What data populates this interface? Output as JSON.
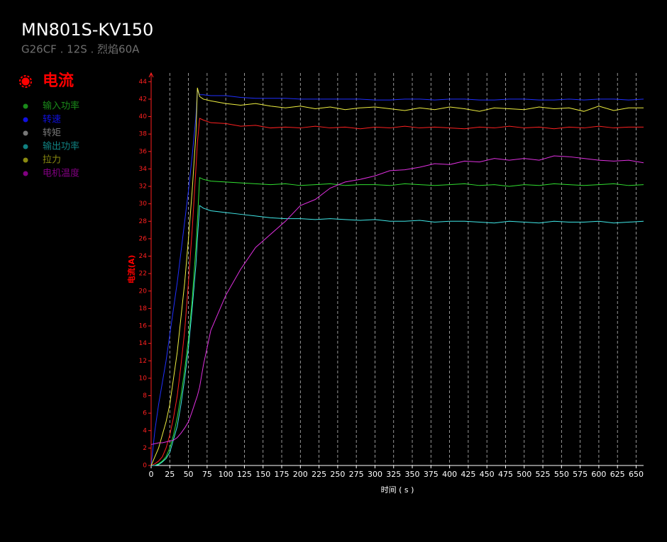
{
  "chart_data": {
    "type": "line",
    "title": "MN801S-KV150",
    "subtitle": "G26CF . 12S . 烈焰60A",
    "x_label": "时间 ( s )",
    "y_label": "电流(A)",
    "xlim": [
      0,
      660
    ],
    "ylim": [
      0,
      45
    ],
    "xticks": [
      0,
      25,
      50,
      75,
      100,
      125,
      150,
      175,
      200,
      225,
      250,
      275,
      300,
      325,
      350,
      375,
      400,
      425,
      450,
      475,
      500,
      525,
      550,
      575,
      600,
      625,
      650
    ],
    "yticks": [
      0,
      2,
      4,
      6,
      8,
      10,
      12,
      14,
      16,
      18,
      20,
      22,
      24,
      26,
      28,
      30,
      32,
      34,
      36,
      38,
      40,
      42,
      44
    ],
    "grid": true,
    "x": [
      0,
      5,
      10,
      15,
      20,
      25,
      30,
      35,
      40,
      45,
      50,
      55,
      60,
      62,
      65,
      70,
      80,
      100,
      120,
      140,
      160,
      180,
      200,
      220,
      240,
      260,
      280,
      300,
      320,
      340,
      360,
      380,
      400,
      420,
      440,
      460,
      480,
      500,
      520,
      540,
      560,
      580,
      600,
      620,
      640,
      660
    ],
    "series": [
      {
        "name": "电流",
        "color": "#ff2020",
        "legend_color": "#ff0000",
        "values": [
          0,
          0.2,
          0.5,
          1,
          2,
          3.5,
          5.5,
          8,
          11.5,
          15.5,
          21,
          27,
          34,
          37,
          39.8,
          39.6,
          39.3,
          39.2,
          38.9,
          39.0,
          38.7,
          38.8,
          38.7,
          38.9,
          38.7,
          38.8,
          38.6,
          38.8,
          38.7,
          38.9,
          38.7,
          38.8,
          38.7,
          38.6,
          38.8,
          38.7,
          38.9,
          38.7,
          38.8,
          38.6,
          38.8,
          38.7,
          38.9,
          38.7,
          38.8,
          38.8
        ]
      },
      {
        "name": "输入功率",
        "color": "#30e030",
        "legend_color": "#1a8a1a",
        "values": [
          0,
          0,
          0.2,
          0.5,
          1,
          2,
          3.5,
          5.5,
          8,
          11,
          14.5,
          19,
          25,
          28,
          33,
          32.8,
          32.6,
          32.5,
          32.4,
          32.3,
          32.2,
          32.3,
          32.1,
          32.2,
          32.3,
          32.1,
          32.2,
          32.2,
          32.1,
          32.3,
          32.2,
          32.1,
          32.2,
          32.3,
          32.1,
          32.2,
          32.0,
          32.2,
          32.1,
          32.3,
          32.2,
          32.1,
          32.2,
          32.3,
          32.1,
          32.2
        ]
      },
      {
        "name": "转速",
        "color": "#2030ff",
        "legend_color": "#1010e0",
        "values": [
          0,
          4,
          7,
          9.5,
          12,
          15,
          18,
          21,
          24.5,
          28,
          31.5,
          35.5,
          40,
          43,
          42.5,
          42.5,
          42.4,
          42.4,
          42.2,
          42.1,
          42.1,
          42.1,
          42.0,
          42.0,
          42.0,
          42.0,
          42.0,
          41.9,
          41.9,
          42.0,
          42.0,
          41.9,
          42.0,
          42.0,
          41.9,
          41.9,
          42.0,
          42.0,
          41.9,
          41.9,
          42.0,
          41.9,
          42.0,
          42.0,
          41.9,
          42.0
        ]
      },
      {
        "name": "转矩",
        "color": "#888888",
        "legend_color": "#777777"
      },
      {
        "name": "输出功率",
        "color": "#40e8e8",
        "legend_color": "#108080",
        "values": [
          0,
          0,
          0.1,
          0.4,
          0.8,
          1.5,
          3,
          4.5,
          7,
          10,
          13.5,
          18,
          23,
          26,
          29.8,
          29.5,
          29.2,
          29.0,
          28.8,
          28.6,
          28.4,
          28.3,
          28.3,
          28.2,
          28.3,
          28.2,
          28.1,
          28.2,
          28.0,
          28.0,
          28.1,
          27.9,
          28.0,
          28.0,
          27.9,
          27.8,
          28.0,
          27.9,
          27.8,
          28.0,
          27.9,
          27.9,
          28.0,
          27.8,
          27.9,
          28.0
        ]
      },
      {
        "name": "拉力",
        "color": "#f0f040",
        "legend_color": "#8a8a10",
        "values": [
          0,
          1,
          2,
          3.5,
          5,
          7,
          10,
          13,
          17,
          21,
          26,
          31.5,
          38,
          43.3,
          42.3,
          42.0,
          41.8,
          41.5,
          41.3,
          41.5,
          41.2,
          41.0,
          41.2,
          40.9,
          41.1,
          40.8,
          41.0,
          41.1,
          40.9,
          40.7,
          41.0,
          40.8,
          41.1,
          40.9,
          40.6,
          41.0,
          40.9,
          40.8,
          41.1,
          40.9,
          41.0,
          40.6,
          41.2,
          40.7,
          41.0,
          41.0
        ]
      },
      {
        "name": "电机温度",
        "color": "#e030e0",
        "legend_color": "#800080",
        "values": [
          2.4,
          2.5,
          2.6,
          2.6,
          2.7,
          2.8,
          2.9,
          3.2,
          3.7,
          4.3,
          5,
          6.2,
          7.5,
          8,
          9,
          11.5,
          15.5,
          19.5,
          22.5,
          25,
          26.5,
          28,
          29.8,
          30.5,
          31.8,
          32.5,
          32.8,
          33.2,
          33.8,
          33.9,
          34.2,
          34.6,
          34.5,
          34.9,
          34.8,
          35.2,
          35.0,
          35.2,
          35.0,
          35.5,
          35.4,
          35.2,
          35.0,
          34.9,
          35.0,
          34.7
        ]
      }
    ]
  }
}
